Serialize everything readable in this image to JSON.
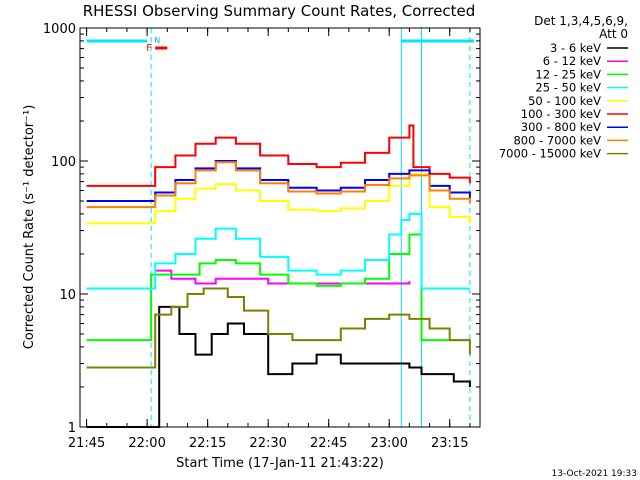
{
  "chart_data": {
    "type": "line",
    "title": "RHESSI Observing Summary Count Rates, Corrected",
    "xlabel": "Start Time (17-Jan-11 21:43:22)",
    "ylabel": "Corrected Count Rate (s⁻¹ detector⁻¹)",
    "y_scale": "log",
    "ylim": [
      1,
      1000
    ],
    "xlim": [
      "21:43:22",
      "23:22:30"
    ],
    "x_ticks": [
      "21:45",
      "22:00",
      "22:15",
      "22:30",
      "22:45",
      "23:00",
      "23:15"
    ],
    "y_ticks": [
      "1",
      "10",
      "100",
      "1000"
    ],
    "legend_header": [
      "Det 1,3,4,5,6,9,",
      "Att 0"
    ],
    "legend_position": "right",
    "footer": "13-Oct-2021 19:33",
    "flags": {
      "f_label": "F",
      "n_label": "N",
      "night_bars": [
        [
          "21:45",
          "22:00"
        ],
        [
          "23:03",
          "23:21"
        ]
      ],
      "flare_bar": [
        "22:02",
        "22:05"
      ],
      "dashed_lines": [
        "22:01",
        "23:20"
      ],
      "solid_lines": [
        "23:03",
        "23:08"
      ]
    },
    "series": [
      {
        "name": "3 - 6 keV",
        "color": "#000000",
        "x": [
          "21:45",
          "22:00",
          "22:03",
          "22:08",
          "22:12",
          "22:16",
          "22:20",
          "22:24",
          "22:30",
          "22:36",
          "22:42",
          "22:48",
          "22:54",
          "23:00",
          "23:05",
          "23:08",
          "23:12",
          "23:16",
          "23:20"
        ],
        "values": [
          1.0,
          1.0,
          8,
          5,
          3.5,
          5,
          6,
          5,
          2.5,
          3,
          3.5,
          3,
          3,
          3,
          2.8,
          2.5,
          2.5,
          2.2,
          2
        ]
      },
      {
        "name": "6 - 12 keV",
        "color": "#ff00ff",
        "x": [
          "22:02",
          "22:06",
          "22:12",
          "22:17",
          "22:22",
          "22:30",
          "22:40",
          "22:50",
          "23:00",
          "23:05"
        ],
        "values": [
          15,
          13,
          12,
          13,
          13,
          12,
          12,
          12,
          12,
          12.5
        ]
      },
      {
        "name": "12 - 25 keV",
        "color": "#00ff00",
        "x": [
          "21:45",
          "22:00",
          "22:01",
          "22:08",
          "22:13",
          "22:17",
          "22:22",
          "22:28",
          "22:35",
          "22:42",
          "22:48",
          "22:54",
          "23:00",
          "23:05",
          "23:08",
          "23:12",
          "23:16",
          "23:20"
        ],
        "values": [
          4.5,
          4.5,
          14,
          14,
          17,
          18,
          17,
          14,
          12,
          11.5,
          12,
          13,
          20,
          28,
          4.5,
          4.5,
          4.5,
          4.5
        ]
      },
      {
        "name": "25 - 50 keV",
        "color": "#00ffff",
        "x": [
          "21:45",
          "22:00",
          "22:02",
          "22:07",
          "22:12",
          "22:17",
          "22:22",
          "22:28",
          "22:35",
          "22:42",
          "22:48",
          "22:54",
          "23:00",
          "23:03",
          "23:05",
          "23:08",
          "23:12",
          "23:16",
          "23:20"
        ],
        "values": [
          11,
          11,
          17,
          20,
          26,
          31,
          26,
          19,
          15,
          14,
          15,
          18,
          28,
          36,
          40,
          11,
          11,
          11,
          11
        ]
      },
      {
        "name": "50 - 100 keV",
        "color": "#ffff00",
        "x": [
          "21:45",
          "22:00",
          "22:02",
          "22:07",
          "22:12",
          "22:17",
          "22:22",
          "22:28",
          "22:35",
          "22:42",
          "22:48",
          "22:54",
          "23:00",
          "23:05",
          "23:10",
          "23:15",
          "23:20"
        ],
        "values": [
          34,
          34,
          42,
          52,
          62,
          67,
          60,
          50,
          43,
          42,
          44,
          50,
          65,
          80,
          45,
          38,
          34
        ]
      },
      {
        "name": "100 - 300 keV",
        "color": "#ff0000",
        "x": [
          "21:45",
          "22:00",
          "22:02",
          "22:07",
          "22:12",
          "22:17",
          "22:22",
          "22:28",
          "22:35",
          "22:42",
          "22:48",
          "22:54",
          "23:00",
          "23:05",
          "23:06",
          "23:10",
          "23:15",
          "23:20"
        ],
        "values": [
          65,
          65,
          90,
          110,
          135,
          150,
          135,
          110,
          95,
          90,
          97,
          115,
          150,
          185,
          90,
          80,
          75,
          68
        ]
      },
      {
        "name": "300 - 800 keV",
        "color": "#0000ff",
        "x": [
          "21:45",
          "22:00",
          "22:02",
          "22:07",
          "22:12",
          "22:17",
          "22:22",
          "22:28",
          "22:35",
          "22:42",
          "22:48",
          "22:54",
          "23:00",
          "23:05",
          "23:10",
          "23:15",
          "23:20"
        ],
        "values": [
          50,
          50,
          58,
          72,
          88,
          100,
          88,
          72,
          63,
          60,
          63,
          72,
          80,
          85,
          65,
          58,
          52
        ]
      },
      {
        "name": "800 - 7000 keV",
        "color": "#ff8000",
        "x": [
          "21:45",
          "22:00",
          "22:02",
          "22:07",
          "22:12",
          "22:17",
          "22:22",
          "22:28",
          "22:35",
          "22:42",
          "22:48",
          "22:54",
          "23:00",
          "23:05",
          "23:10",
          "23:15",
          "23:20"
        ],
        "values": [
          45,
          45,
          55,
          68,
          85,
          98,
          85,
          68,
          59,
          57,
          59,
          66,
          74,
          78,
          60,
          52,
          48
        ]
      },
      {
        "name": "7000 - 15000 keV",
        "color": "#808000",
        "x": [
          "21:45",
          "22:00",
          "22:02",
          "22:06",
          "22:10",
          "22:14",
          "22:17",
          "22:20",
          "22:24",
          "22:30",
          "22:36",
          "22:42",
          "22:48",
          "22:54",
          "23:00",
          "23:05",
          "23:10",
          "23:15",
          "23:20"
        ],
        "values": [
          2.8,
          2.8,
          7,
          8,
          10,
          11,
          11,
          9.5,
          7.5,
          5,
          4.5,
          4.5,
          5.5,
          6.5,
          7,
          6.5,
          5.5,
          4.5,
          3.5
        ]
      }
    ]
  }
}
